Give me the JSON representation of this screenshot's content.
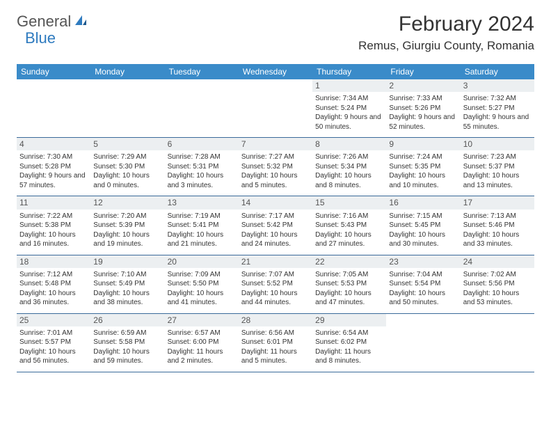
{
  "brand": {
    "word1": "General",
    "word2": "Blue"
  },
  "header": {
    "month_title": "February 2024",
    "location": "Remus, Giurgiu County, Romania"
  },
  "colors": {
    "header_bg": "#3a8bc9",
    "header_text": "#ffffff",
    "daynum_bg": "#eceff1",
    "border": "#3a6a9a",
    "brand_gray": "#555555",
    "brand_blue": "#2f7bbf"
  },
  "day_names": [
    "Sunday",
    "Monday",
    "Tuesday",
    "Wednesday",
    "Thursday",
    "Friday",
    "Saturday"
  ],
  "weeks": [
    [
      {
        "empty": true
      },
      {
        "empty": true
      },
      {
        "empty": true
      },
      {
        "empty": true
      },
      {
        "num": "1",
        "sunrise": "Sunrise: 7:34 AM",
        "sunset": "Sunset: 5:24 PM",
        "daylight": "Daylight: 9 hours and 50 minutes."
      },
      {
        "num": "2",
        "sunrise": "Sunrise: 7:33 AM",
        "sunset": "Sunset: 5:26 PM",
        "daylight": "Daylight: 9 hours and 52 minutes."
      },
      {
        "num": "3",
        "sunrise": "Sunrise: 7:32 AM",
        "sunset": "Sunset: 5:27 PM",
        "daylight": "Daylight: 9 hours and 55 minutes."
      }
    ],
    [
      {
        "num": "4",
        "sunrise": "Sunrise: 7:30 AM",
        "sunset": "Sunset: 5:28 PM",
        "daylight": "Daylight: 9 hours and 57 minutes."
      },
      {
        "num": "5",
        "sunrise": "Sunrise: 7:29 AM",
        "sunset": "Sunset: 5:30 PM",
        "daylight": "Daylight: 10 hours and 0 minutes."
      },
      {
        "num": "6",
        "sunrise": "Sunrise: 7:28 AM",
        "sunset": "Sunset: 5:31 PM",
        "daylight": "Daylight: 10 hours and 3 minutes."
      },
      {
        "num": "7",
        "sunrise": "Sunrise: 7:27 AM",
        "sunset": "Sunset: 5:32 PM",
        "daylight": "Daylight: 10 hours and 5 minutes."
      },
      {
        "num": "8",
        "sunrise": "Sunrise: 7:26 AM",
        "sunset": "Sunset: 5:34 PM",
        "daylight": "Daylight: 10 hours and 8 minutes."
      },
      {
        "num": "9",
        "sunrise": "Sunrise: 7:24 AM",
        "sunset": "Sunset: 5:35 PM",
        "daylight": "Daylight: 10 hours and 10 minutes."
      },
      {
        "num": "10",
        "sunrise": "Sunrise: 7:23 AM",
        "sunset": "Sunset: 5:37 PM",
        "daylight": "Daylight: 10 hours and 13 minutes."
      }
    ],
    [
      {
        "num": "11",
        "sunrise": "Sunrise: 7:22 AM",
        "sunset": "Sunset: 5:38 PM",
        "daylight": "Daylight: 10 hours and 16 minutes."
      },
      {
        "num": "12",
        "sunrise": "Sunrise: 7:20 AM",
        "sunset": "Sunset: 5:39 PM",
        "daylight": "Daylight: 10 hours and 19 minutes."
      },
      {
        "num": "13",
        "sunrise": "Sunrise: 7:19 AM",
        "sunset": "Sunset: 5:41 PM",
        "daylight": "Daylight: 10 hours and 21 minutes."
      },
      {
        "num": "14",
        "sunrise": "Sunrise: 7:17 AM",
        "sunset": "Sunset: 5:42 PM",
        "daylight": "Daylight: 10 hours and 24 minutes."
      },
      {
        "num": "15",
        "sunrise": "Sunrise: 7:16 AM",
        "sunset": "Sunset: 5:43 PM",
        "daylight": "Daylight: 10 hours and 27 minutes."
      },
      {
        "num": "16",
        "sunrise": "Sunrise: 7:15 AM",
        "sunset": "Sunset: 5:45 PM",
        "daylight": "Daylight: 10 hours and 30 minutes."
      },
      {
        "num": "17",
        "sunrise": "Sunrise: 7:13 AM",
        "sunset": "Sunset: 5:46 PM",
        "daylight": "Daylight: 10 hours and 33 minutes."
      }
    ],
    [
      {
        "num": "18",
        "sunrise": "Sunrise: 7:12 AM",
        "sunset": "Sunset: 5:48 PM",
        "daylight": "Daylight: 10 hours and 36 minutes."
      },
      {
        "num": "19",
        "sunrise": "Sunrise: 7:10 AM",
        "sunset": "Sunset: 5:49 PM",
        "daylight": "Daylight: 10 hours and 38 minutes."
      },
      {
        "num": "20",
        "sunrise": "Sunrise: 7:09 AM",
        "sunset": "Sunset: 5:50 PM",
        "daylight": "Daylight: 10 hours and 41 minutes."
      },
      {
        "num": "21",
        "sunrise": "Sunrise: 7:07 AM",
        "sunset": "Sunset: 5:52 PM",
        "daylight": "Daylight: 10 hours and 44 minutes."
      },
      {
        "num": "22",
        "sunrise": "Sunrise: 7:05 AM",
        "sunset": "Sunset: 5:53 PM",
        "daylight": "Daylight: 10 hours and 47 minutes."
      },
      {
        "num": "23",
        "sunrise": "Sunrise: 7:04 AM",
        "sunset": "Sunset: 5:54 PM",
        "daylight": "Daylight: 10 hours and 50 minutes."
      },
      {
        "num": "24",
        "sunrise": "Sunrise: 7:02 AM",
        "sunset": "Sunset: 5:56 PM",
        "daylight": "Daylight: 10 hours and 53 minutes."
      }
    ],
    [
      {
        "num": "25",
        "sunrise": "Sunrise: 7:01 AM",
        "sunset": "Sunset: 5:57 PM",
        "daylight": "Daylight: 10 hours and 56 minutes."
      },
      {
        "num": "26",
        "sunrise": "Sunrise: 6:59 AM",
        "sunset": "Sunset: 5:58 PM",
        "daylight": "Daylight: 10 hours and 59 minutes."
      },
      {
        "num": "27",
        "sunrise": "Sunrise: 6:57 AM",
        "sunset": "Sunset: 6:00 PM",
        "daylight": "Daylight: 11 hours and 2 minutes."
      },
      {
        "num": "28",
        "sunrise": "Sunrise: 6:56 AM",
        "sunset": "Sunset: 6:01 PM",
        "daylight": "Daylight: 11 hours and 5 minutes."
      },
      {
        "num": "29",
        "sunrise": "Sunrise: 6:54 AM",
        "sunset": "Sunset: 6:02 PM",
        "daylight": "Daylight: 11 hours and 8 minutes."
      },
      {
        "empty": true
      },
      {
        "empty": true
      }
    ]
  ]
}
